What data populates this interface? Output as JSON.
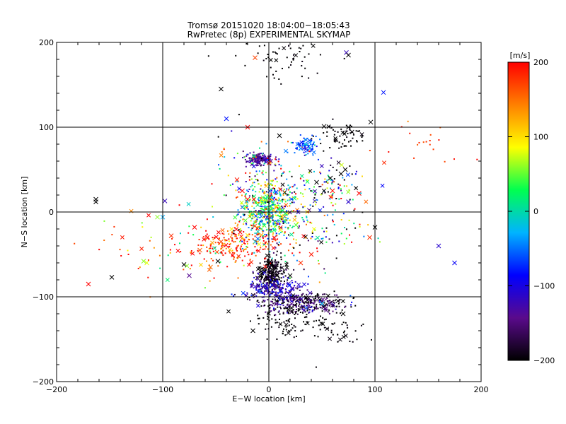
{
  "chart_data": {
    "type": "scatter",
    "title": "Tromsø 20151020 18:04:00−18:05:43",
    "subtitle": "RwPretec (8p) EXPERIMENTAL SKYMAP",
    "xlabel": "E−W location [km]",
    "ylabel": "N−S location [km]",
    "xlim": [
      -200,
      200
    ],
    "ylim": [
      -200,
      200
    ],
    "xticks": [
      -200,
      -100,
      0,
      100,
      200
    ],
    "yticks": [
      -200,
      -100,
      0,
      100,
      200
    ],
    "xtick_labels": [
      "−200",
      "−100",
      "0",
      "100",
      "200"
    ],
    "ytick_labels": [
      "−200",
      "−100",
      "0",
      "100",
      "200"
    ],
    "grid": true,
    "markers": [
      "small dot",
      "x"
    ],
    "colorbar": {
      "label": "[m/s]",
      "range": [
        -200,
        200
      ],
      "ticks": [
        200,
        100,
        0,
        -100,
        -200
      ],
      "tick_labels": [
        "200",
        "100",
        "0",
        "−100",
        "−200"
      ],
      "colormap": [
        "#000000",
        "#5a0a8c",
        "#0000ff",
        "#00b4ff",
        "#00ff50",
        "#ffff00",
        "#ff8000",
        "#ff0000"
      ]
    },
    "clusters": [
      {
        "x": 0,
        "y": 0,
        "sx": 12,
        "sy": 16,
        "n": 420,
        "v": 20,
        "vs": 70
      },
      {
        "x": 2,
        "y": -72,
        "sx": 6,
        "sy": 9,
        "n": 260,
        "v": -195,
        "vs": 10
      },
      {
        "x": 30,
        "y": -107,
        "sx": 20,
        "sy": 6,
        "n": 320,
        "v": -170,
        "vs": 35
      },
      {
        "x": 5,
        "y": -90,
        "sx": 14,
        "sy": 8,
        "n": 200,
        "v": -115,
        "vs": 30
      },
      {
        "x": -10,
        "y": 62,
        "sx": 6,
        "sy": 3,
        "n": 140,
        "v": -135,
        "vs": 15
      },
      {
        "x": 35,
        "y": 78,
        "sx": 5,
        "sy": 5,
        "n": 80,
        "v": -60,
        "vs": 25
      },
      {
        "x": -30,
        "y": -38,
        "sx": 20,
        "sy": 10,
        "n": 200,
        "v": 180,
        "vs": 40
      },
      {
        "x": 15,
        "y": -130,
        "sx": 15,
        "sy": 12,
        "n": 70,
        "v": -200,
        "vs": 5
      },
      {
        "x": 55,
        "y": -135,
        "sx": 18,
        "sy": 10,
        "n": 60,
        "v": -200,
        "vs": 5
      },
      {
        "x": 70,
        "y": 90,
        "sx": 12,
        "sy": 8,
        "n": 60,
        "v": -200,
        "vs": 5
      },
      {
        "x": 60,
        "y": 30,
        "sx": 15,
        "sy": 15,
        "n": 90,
        "v": -50,
        "vs": 160
      },
      {
        "x": 0,
        "y": 30,
        "sx": 25,
        "sy": 30,
        "n": 200,
        "v": 40,
        "vs": 150
      },
      {
        "x": 30,
        "y": -20,
        "sx": 30,
        "sy": 25,
        "n": 150,
        "v": 0,
        "vs": 150
      },
      {
        "x": -80,
        "y": -40,
        "sx": 40,
        "sy": 25,
        "n": 80,
        "v": 120,
        "vs": 100
      },
      {
        "x": 20,
        "y": 180,
        "sx": 25,
        "sy": 15,
        "n": 60,
        "v": -200,
        "vs": 5
      },
      {
        "x": 140,
        "y": 80,
        "sx": 25,
        "sy": 15,
        "n": 20,
        "v": 180,
        "vs": 20
      }
    ],
    "x_markers": [
      {
        "x": -163,
        "y": 15,
        "v": -200
      },
      {
        "x": -163,
        "y": 12,
        "v": -200
      },
      {
        "x": -98,
        "y": 13,
        "v": -120
      },
      {
        "x": -105,
        "y": -6,
        "v": 60
      },
      {
        "x": -100,
        "y": -6,
        "v": -30
      },
      {
        "x": -115,
        "y": -60,
        "v": 80
      },
      {
        "x": -118,
        "y": -58,
        "v": 60
      },
      {
        "x": -148,
        "y": -77,
        "v": -200
      },
      {
        "x": -170,
        "y": -85,
        "v": 200
      },
      {
        "x": -92,
        "y": -28,
        "v": 180
      },
      {
        "x": -80,
        "y": -62,
        "v": -200
      },
      {
        "x": -75,
        "y": -75,
        "v": -140
      },
      {
        "x": -70,
        "y": -18,
        "v": 200
      },
      {
        "x": -58,
        "y": -30,
        "v": 190
      },
      {
        "x": -55,
        "y": -65,
        "v": 150
      },
      {
        "x": -48,
        "y": -58,
        "v": -200
      },
      {
        "x": -45,
        "y": -35,
        "v": 170
      },
      {
        "x": -65,
        "y": -45,
        "v": 160
      },
      {
        "x": -40,
        "y": 110,
        "v": -80
      },
      {
        "x": -45,
        "y": 145,
        "v": -200
      },
      {
        "x": -13,
        "y": 182,
        "v": 170
      },
      {
        "x": -30,
        "y": 38,
        "v": 190
      },
      {
        "x": -25,
        "y": 25,
        "v": 200
      },
      {
        "x": -20,
        "y": 15,
        "v": 190
      },
      {
        "x": -20,
        "y": 100,
        "v": 200
      },
      {
        "x": 45,
        "y": 35,
        "v": -200
      },
      {
        "x": 58,
        "y": 40,
        "v": -200
      },
      {
        "x": 68,
        "y": 45,
        "v": -200
      },
      {
        "x": 72,
        "y": 50,
        "v": -200
      },
      {
        "x": 60,
        "y": 25,
        "v": 190
      },
      {
        "x": 75,
        "y": 12,
        "v": -110
      },
      {
        "x": 85,
        "y": 22,
        "v": 200
      },
      {
        "x": 75,
        "y": 100,
        "v": -200
      },
      {
        "x": 52,
        "y": 101,
        "v": -200
      },
      {
        "x": 96,
        "y": 106,
        "v": -200
      },
      {
        "x": 108,
        "y": 141,
        "v": -80
      },
      {
        "x": 73,
        "y": 188,
        "v": -120
      },
      {
        "x": 75,
        "y": 185,
        "v": -200
      },
      {
        "x": 100,
        "y": -18,
        "v": -200
      },
      {
        "x": 95,
        "y": -30,
        "v": 180
      },
      {
        "x": 65,
        "y": -105,
        "v": -200
      },
      {
        "x": 60,
        "y": -110,
        "v": -160
      },
      {
        "x": 70,
        "y": -120,
        "v": -200
      },
      {
        "x": 50,
        "y": -108,
        "v": -30
      },
      {
        "x": -15,
        "y": -140,
        "v": -200
      },
      {
        "x": 20,
        "y": -75,
        "v": -200
      },
      {
        "x": 160,
        "y": -40,
        "v": -110
      },
      {
        "x": 175,
        "y": -60,
        "v": -90
      },
      {
        "x": 30,
        "y": 75,
        "v": -40
      },
      {
        "x": 35,
        "y": 85,
        "v": -50
      },
      {
        "x": 10,
        "y": 90,
        "v": -200
      },
      {
        "x": 0,
        "y": -60,
        "v": -200
      },
      {
        "x": 30,
        "y": -60,
        "v": 180
      },
      {
        "x": 40,
        "y": -50,
        "v": 190
      }
    ]
  }
}
